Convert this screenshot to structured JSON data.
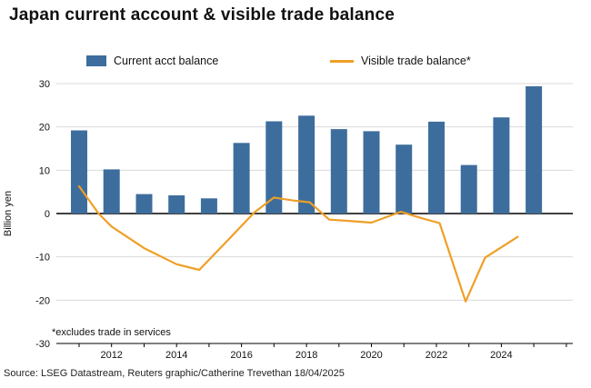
{
  "footnote": "*excludes trade in services",
  "source": "Source: LSEG Datastream, Reuters graphic/Catherine Trevethan 18/04/2025",
  "chart_data": {
    "type": "bar+line",
    "title": "Japan current account & visible trade balance",
    "ylabel": "Billion yen",
    "ylim": [
      -30,
      30
    ],
    "xlim": [
      2010.3,
      2026.2
    ],
    "yticks": [
      30,
      20,
      10,
      0,
      -10,
      -20,
      -30
    ],
    "xticks": [
      2012,
      2014,
      2016,
      2018,
      2020,
      2022,
      2024
    ],
    "grid_color": "#d9d9d9",
    "axis_color": "#000000",
    "grid": true,
    "legend_position": "top",
    "bar_series": {
      "name": "Current acct balance",
      "color": "#3D6D9D",
      "years": [
        2011,
        2012,
        2013,
        2014,
        2015,
        2016,
        2017,
        2018,
        2019,
        2020,
        2021,
        2022,
        2023,
        2024,
        2025
      ],
      "values": [
        19.2,
        10.2,
        4.5,
        4.2,
        3.5,
        16.3,
        21.3,
        22.6,
        19.5,
        19.0,
        15.9,
        21.2,
        11.2,
        22.2,
        29.4
      ]
    },
    "line_series": {
      "name": "Visible trade balance*",
      "color": "#EF9F26",
      "points": [
        [
          2011,
          6.3
        ],
        [
          2011.6,
          0
        ],
        [
          2012,
          -3
        ],
        [
          2013,
          -8
        ],
        [
          2014,
          -11.7
        ],
        [
          2014.7,
          -13
        ],
        [
          2015.6,
          -6
        ],
        [
          2016.4,
          0.3
        ],
        [
          2017,
          3.7
        ],
        [
          2017.6,
          3.0
        ],
        [
          2018.1,
          2.6
        ],
        [
          2018.7,
          -1.4
        ],
        [
          2019.3,
          -1.7
        ],
        [
          2020,
          -2.1
        ],
        [
          2020.9,
          0.4
        ],
        [
          2021.6,
          -1.2
        ],
        [
          2022.1,
          -2.2
        ],
        [
          2022.9,
          -20.3
        ],
        [
          2023.5,
          -10.2
        ],
        [
          2024.5,
          -5.4
        ]
      ]
    }
  }
}
